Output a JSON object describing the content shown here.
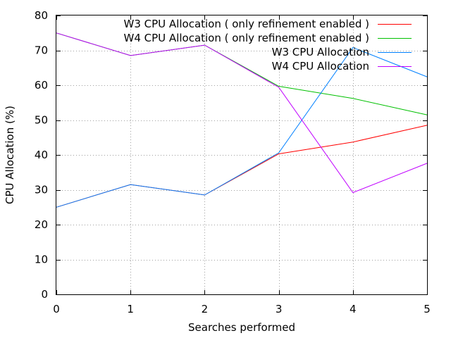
{
  "chart_data": {
    "type": "line",
    "title": "",
    "xlabel": "Searches performed",
    "ylabel": "CPU Allocation (%)",
    "xlim": [
      0,
      5
    ],
    "ylim": [
      0,
      80
    ],
    "xticks": [
      0,
      1,
      2,
      3,
      4,
      5
    ],
    "yticks": [
      0,
      10,
      20,
      30,
      40,
      50,
      60,
      70,
      80
    ],
    "grid": true,
    "legend_position": "top-right",
    "x": [
      0,
      1,
      2,
      3,
      4,
      5
    ],
    "series": [
      {
        "name": "W3 CPU Allocation ( only refinement enabled )",
        "color": "#ff0000",
        "values": [
          25,
          31.5,
          28.5,
          40.3,
          43.7,
          48.5
        ]
      },
      {
        "name": "W4 CPU Allocation ( only refinement enabled )",
        "color": "#00c000",
        "values": [
          75,
          68.5,
          71.5,
          59.7,
          56.2,
          51.5
        ]
      },
      {
        "name": "W3 CPU Allocation",
        "color": "#0080ff",
        "values": [
          25,
          31.5,
          28.5,
          40.6,
          70.8,
          62.4
        ]
      },
      {
        "name": "W4 CPU Allocation",
        "color": "#c000ff",
        "values": [
          75,
          68.5,
          71.5,
          59.4,
          29.2,
          37.6
        ]
      }
    ]
  }
}
